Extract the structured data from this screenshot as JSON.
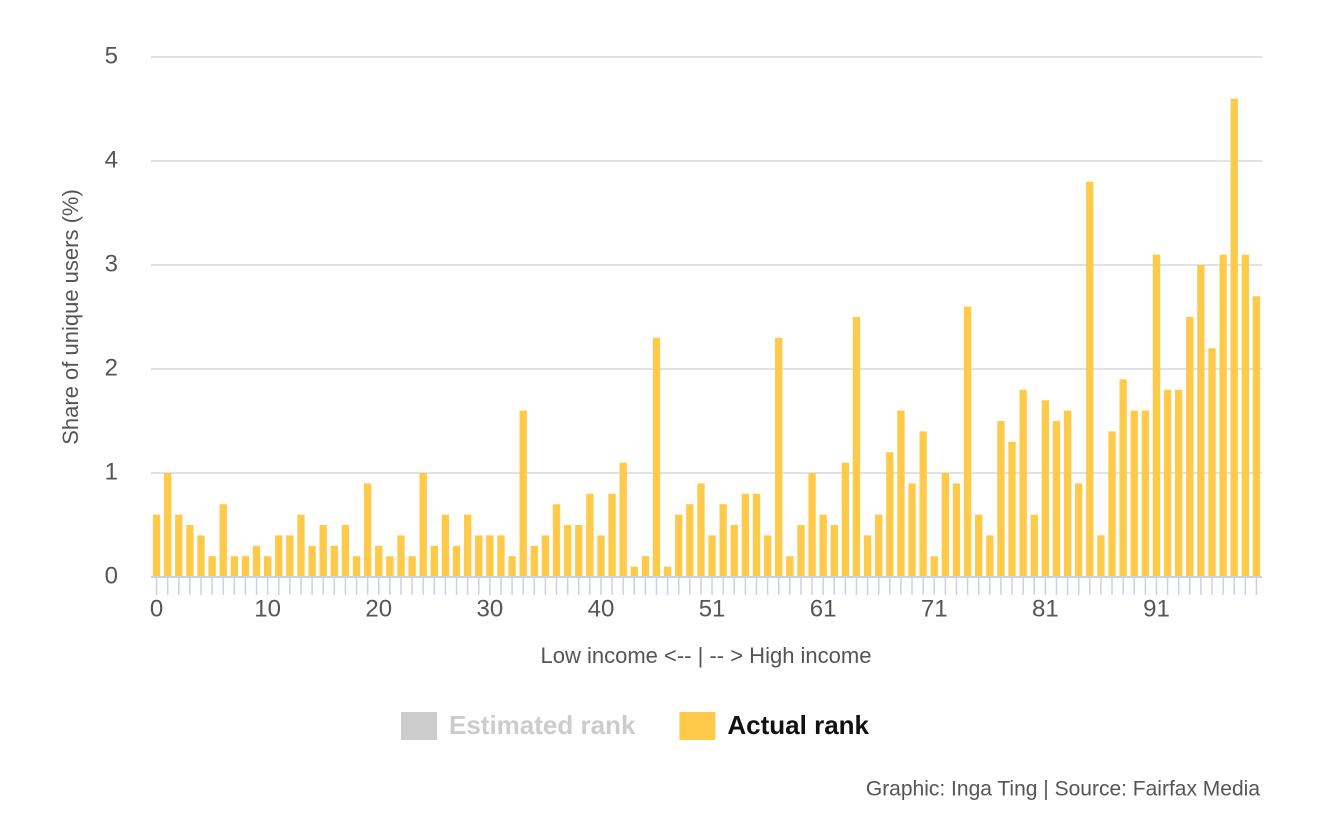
{
  "chart_data": {
    "type": "bar",
    "y_label": "Share of unique users (%)",
    "x_label": "Low income <-- | -- > High income",
    "source": "Graphic: Inga Ting | Source: Fairfax Media",
    "categories": [
      0,
      null,
      null,
      null,
      null,
      null,
      null,
      null,
      null,
      null,
      10,
      null,
      null,
      null,
      null,
      null,
      null,
      null,
      null,
      null,
      20,
      null,
      null,
      null,
      null,
      null,
      null,
      null,
      null,
      null,
      30,
      null,
      null,
      null,
      null,
      null,
      null,
      null,
      null,
      null,
      40,
      null,
      null,
      null,
      null,
      null,
      null,
      null,
      null,
      null,
      51,
      null,
      null,
      null,
      null,
      null,
      null,
      null,
      null,
      null,
      61,
      null,
      null,
      null,
      null,
      null,
      null,
      null,
      null,
      null,
      71,
      null,
      null,
      null,
      null,
      null,
      null,
      null,
      null,
      null,
      81,
      null,
      null,
      null,
      null,
      null,
      null,
      null,
      null,
      null,
      91,
      null,
      null,
      null,
      null,
      null,
      null,
      null,
      null,
      null
    ],
    "series": [
      {
        "name": "Actual rank",
        "color": "#ffc94a",
        "values": [
          0.6,
          1.0,
          0.6,
          0.5,
          0.4,
          0.2,
          0.7,
          0.2,
          0.2,
          0.3,
          0.2,
          0.4,
          0.4,
          0.6,
          0.3,
          0.5,
          0.3,
          0.5,
          0.2,
          0.9,
          0.3,
          0.2,
          0.4,
          0.2,
          1.0,
          0.3,
          0.6,
          0.3,
          0.6,
          0.4,
          0.4,
          0.4,
          0.2,
          1.6,
          0.3,
          0.4,
          0.7,
          0.5,
          0.5,
          0.8,
          0.4,
          0.8,
          1.1,
          0.1,
          0.2,
          2.3,
          0.1,
          0.6,
          0.7,
          0.9,
          0.4,
          0.7,
          0.5,
          0.8,
          0.8,
          0.4,
          2.3,
          0.2,
          0.5,
          1.0,
          0.6,
          0.5,
          1.1,
          2.5,
          0.4,
          0.6,
          1.2,
          1.6,
          0.9,
          1.4,
          0.2,
          1.0,
          0.9,
          2.6,
          0.6,
          0.4,
          1.5,
          1.3,
          1.8,
          0.6,
          1.7,
          1.5,
          1.6,
          0.9,
          3.8,
          0.4,
          1.4,
          1.9,
          1.6,
          1.6,
          3.1,
          1.8,
          1.8,
          2.5,
          3.0,
          2.2,
          3.1,
          4.6,
          3.1,
          2.7
        ]
      }
    ],
    "hidden_series": [
      {
        "name": "Estimated rank",
        "color": "#cccccc"
      }
    ],
    "ylim": [
      0,
      5
    ],
    "yticks": [
      0,
      1,
      2,
      3,
      4,
      5
    ],
    "grid": true
  }
}
